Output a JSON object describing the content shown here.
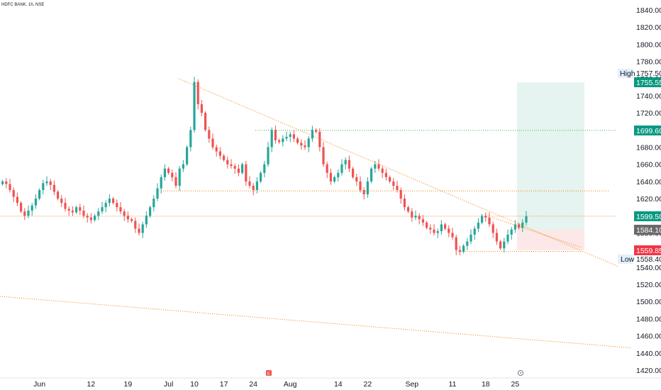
{
  "header": {
    "symbol": "HDFC BANK, 1h, NSE"
  },
  "colors": {
    "up": "#26a69a",
    "down": "#ef5350",
    "trendline": "#f57c00",
    "target": "#4caf50",
    "profit_zone": "#e5f4f0",
    "loss_zone": "#fce8e8",
    "tag_green": "#089981",
    "tag_red": "#f23645",
    "tag_gray": "#696969",
    "tag_light": "#e3effd"
  },
  "chart_data": {
    "type": "candlestick",
    "y_axis": {
      "ylim": [
        1415,
        1850
      ],
      "ticks": [
        1840,
        1820,
        1800,
        1780,
        1760,
        1740,
        1720,
        1700,
        1680,
        1660,
        1640,
        1620,
        1600,
        1580,
        1560,
        1540,
        1520,
        1500,
        1480,
        1460,
        1440,
        1420
      ],
      "tick_labels": [
        "1840.00",
        "1820.00",
        "1800.00",
        "1780.00",
        "1760.00",
        "1740.00",
        "1720.00",
        "1700.00",
        "1680.00",
        "1660.00",
        "1640.00",
        "1620.00",
        "1600.00",
        "1580.00",
        "1560.00",
        "1540.00",
        "1520.00",
        "1500.00",
        "1480.00",
        "1460.00",
        "1440.00",
        "1420.00"
      ]
    },
    "x_axis": {
      "tick_labels": [
        "Jun",
        "12",
        "19",
        "Jul",
        "10",
        "17",
        "24",
        "Aug",
        "14",
        "22",
        "Sep",
        "11",
        "18",
        "25"
      ],
      "tick_index": [
        10,
        24,
        34,
        45,
        52,
        60,
        68,
        78,
        91,
        99,
        111,
        122,
        131,
        139
      ]
    },
    "candles_close": [
      1640,
      1637,
      1630,
      1622,
      1615,
      1605,
      1600,
      1606,
      1612,
      1620,
      1630,
      1638,
      1640,
      1636,
      1628,
      1620,
      1615,
      1608,
      1606,
      1604,
      1610,
      1606,
      1600,
      1598,
      1595,
      1600,
      1605,
      1610,
      1615,
      1620,
      1615,
      1610,
      1605,
      1600,
      1596,
      1594,
      1585,
      1580,
      1590,
      1600,
      1610,
      1620,
      1632,
      1645,
      1655,
      1650,
      1645,
      1635,
      1655,
      1660,
      1680,
      1700,
      1756,
      1730,
      1720,
      1700,
      1690,
      1680,
      1675,
      1670,
      1665,
      1660,
      1658,
      1655,
      1650,
      1660,
      1640,
      1635,
      1630,
      1640,
      1650,
      1660,
      1680,
      1700,
      1688,
      1686,
      1690,
      1692,
      1695,
      1690,
      1685,
      1682,
      1680,
      1690,
      1700,
      1698,
      1680,
      1660,
      1650,
      1640,
      1645,
      1650,
      1660,
      1665,
      1655,
      1645,
      1640,
      1630,
      1625,
      1640,
      1655,
      1660,
      1655,
      1650,
      1645,
      1640,
      1635,
      1630,
      1620,
      1610,
      1605,
      1598,
      1600,
      1596,
      1592,
      1586,
      1584,
      1580,
      1582,
      1590,
      1585,
      1580,
      1575,
      1560,
      1558,
      1565,
      1570,
      1578,
      1585,
      1592,
      1600,
      1598,
      1590,
      1580,
      1570,
      1562,
      1570,
      1578,
      1584,
      1590,
      1586,
      1592,
      1599.5
    ],
    "levels": {
      "high": {
        "label": "High",
        "value": 1757.5,
        "text": "1757.50"
      },
      "low": {
        "label": "Low",
        "value": 1558.4,
        "text": "1558.40"
      },
      "take_profit": {
        "value": 1755.55,
        "text": "1755.55"
      },
      "target_line": {
        "value": 1699.6,
        "text": "1699.60"
      },
      "current": {
        "value": 1599.5,
        "text": "1599.50"
      },
      "entry": {
        "value": 1584.1,
        "text": "1584.10"
      },
      "stop": {
        "value": 1559.85,
        "text": "1559.85"
      },
      "support": {
        "value": 1629.0
      }
    },
    "trendlines": [
      {
        "from": [
          1760,
          0.27
        ],
        "to": [
          1541,
          0.935
        ]
      },
      {
        "from": [
          1506,
          0.0
        ],
        "to": [
          1446,
          0.955
        ]
      },
      {
        "from": [
          1598,
          0.745
        ],
        "to": [
          1563,
          0.88
        ]
      }
    ]
  }
}
